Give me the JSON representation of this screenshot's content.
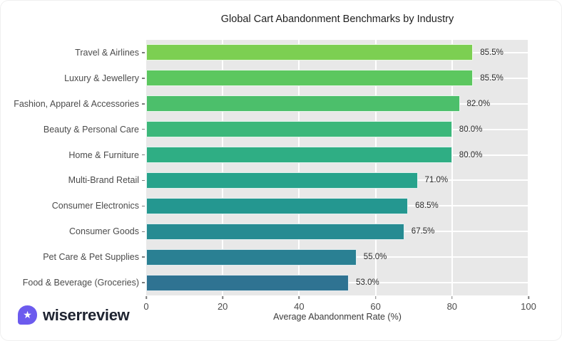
{
  "chart_data": {
    "type": "bar",
    "orientation": "horizontal",
    "title": "Global Cart Abandonment Benchmarks by Industry",
    "xlabel": "Average Abandonment Rate (%)",
    "categories": [
      "Travel & Airlines",
      "Luxury & Jewellery",
      "Fashion, Apparel & Accessories",
      "Beauty & Personal Care",
      "Home & Furniture",
      "Multi-Brand Retail",
      "Consumer Electronics",
      "Consumer Goods",
      "Pet Care & Pet Supplies",
      "Food & Beverage (Groceries)"
    ],
    "values": [
      85.5,
      85.5,
      82.0,
      80.0,
      80.0,
      71.0,
      68.5,
      67.5,
      55.0,
      53.0
    ],
    "value_labels": [
      "85.5%",
      "85.5%",
      "82.0%",
      "80.0%",
      "80.0%",
      "71.0%",
      "68.5%",
      "67.5%",
      "55.0%",
      "53.0%"
    ],
    "xlim": [
      0,
      100
    ],
    "x_ticks": [
      0,
      20,
      40,
      60,
      80,
      100
    ],
    "grid": true,
    "legend": "none",
    "plot_background": "#e8e8e8",
    "gridline_color": "#ffffff",
    "bar_colors": [
      "#7ccf52",
      "#5cc75f",
      "#4cbf6b",
      "#3cb77a",
      "#2fae84",
      "#27a38c",
      "#249790",
      "#268b92",
      "#2a8093",
      "#2f7392"
    ]
  },
  "footer": {
    "brand": "wiserreview",
    "logo_color": "#6c5bee",
    "star_icon": "★"
  }
}
